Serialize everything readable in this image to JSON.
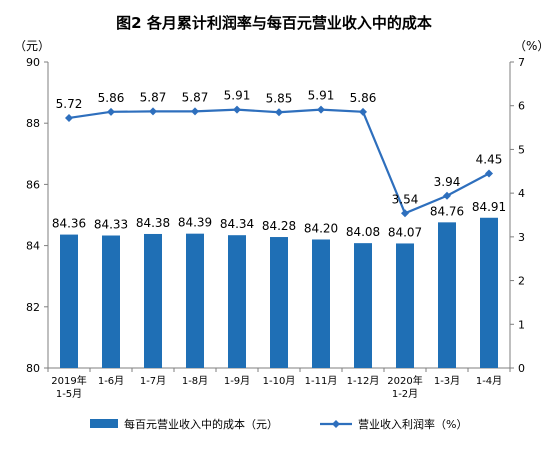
{
  "chart_data": {
    "type": "bar+line",
    "title": "图2  各月累计利润率与每百元营业收入中的成本",
    "left_axis_unit": "（元）",
    "right_axis_unit": "（%）",
    "categories": [
      {
        "line1": "2019年",
        "line2": "1-5月"
      },
      {
        "line1": "1-6月",
        "line2": ""
      },
      {
        "line1": "1-7月",
        "line2": ""
      },
      {
        "line1": "1-8月",
        "line2": ""
      },
      {
        "line1": "1-9月",
        "line2": ""
      },
      {
        "line1": "1-10月",
        "line2": ""
      },
      {
        "line1": "1-11月",
        "line2": ""
      },
      {
        "line1": "1-12月",
        "line2": ""
      },
      {
        "line1": "2020年",
        "line2": "1-2月"
      },
      {
        "line1": "1-3月",
        "line2": ""
      },
      {
        "line1": "1-4月",
        "line2": ""
      }
    ],
    "bar_series": {
      "name": "每百元营业收入中的成本（元）",
      "color": "#1f6fb5",
      "values": [
        84.36,
        84.33,
        84.38,
        84.39,
        84.34,
        84.28,
        84.2,
        84.08,
        84.07,
        84.76,
        84.91
      ],
      "labels": [
        "84.36",
        "84.33",
        "84.38",
        "84.39",
        "84.34",
        "84.28",
        "84.20",
        "84.08",
        "84.07",
        "84.76",
        "84.91"
      ]
    },
    "line_series": {
      "name": "营业收入利润率（%）",
      "color": "#2e6fbd",
      "values": [
        5.72,
        5.86,
        5.87,
        5.87,
        5.91,
        5.85,
        5.91,
        5.86,
        3.54,
        3.94,
        4.45
      ],
      "labels": [
        "5.72",
        "5.86",
        "5.87",
        "5.87",
        "5.91",
        "5.85",
        "5.91",
        "5.86",
        "3.54",
        "3.94",
        "4.45"
      ]
    },
    "y_left": {
      "min": 80,
      "max": 90,
      "ticks": [
        "80",
        "82",
        "84",
        "86",
        "88",
        "90"
      ]
    },
    "y_right": {
      "min": 0,
      "max": 7,
      "ticks": [
        "0",
        "1",
        "2",
        "3",
        "4",
        "5",
        "6",
        "7"
      ]
    },
    "grid": false,
    "legend_position": "bottom"
  }
}
